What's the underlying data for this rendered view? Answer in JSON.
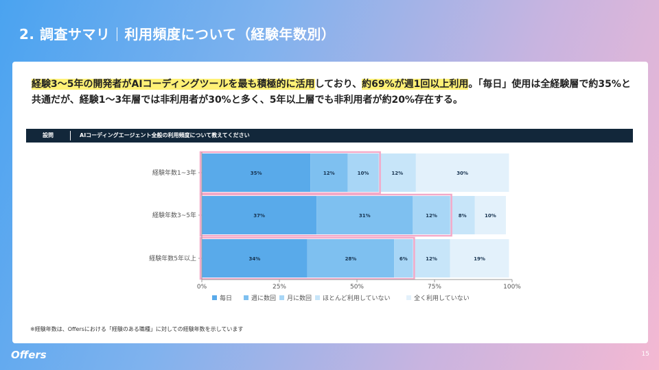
{
  "slide": {
    "title_main": "2. 調査サマリ",
    "title_sub": "利用頻度について（経験年数別）",
    "page_number": "15",
    "logo": "Offers"
  },
  "summary": {
    "part1_hl": "経験3〜5年の開発者がAIコーディングツールを最も積極的に活用",
    "part2": "しており、",
    "part3_hl": "約69%が週1回以上利用",
    "part4": "。「毎日」使用は全経験層で約35%と共通だが、経験1〜3年層では非利用者が30%と多く、5年以上層でも非利用者が約20%存在する。"
  },
  "question": {
    "label": "設問",
    "text": "AIコーディングエージェント全般の利用頻度について教えてください"
  },
  "footnote": "※経験年数は、Offersにおける「経験のある職種」に対しての経験年数を示しています",
  "chart_data": {
    "type": "bar",
    "orientation": "horizontal",
    "stacked": true,
    "unit": "%",
    "categories": [
      "経験年数1~3年",
      "経験年数3~5年",
      "経験年数5年以上"
    ],
    "series": [
      {
        "name": "毎日",
        "values": [
          35,
          37,
          34
        ],
        "color": "#59aaea",
        "label_color": "#16324f"
      },
      {
        "name": "週に数回",
        "values": [
          12,
          31,
          28
        ],
        "color": "#7ec0f0",
        "label_color": "#16324f"
      },
      {
        "name": "月に数回",
        "values": [
          10,
          12,
          6
        ],
        "color": "#a8d6f6",
        "label_color": "#16324f"
      },
      {
        "name": "ほとんど利用していない",
        "values": [
          12,
          8,
          12
        ],
        "color": "#c7e5f9",
        "label_color": "#16324f"
      },
      {
        "name": "全く利用していない",
        "values": [
          30,
          10,
          19
        ],
        "color": "#e3f1fb",
        "label_color": "#16324f"
      }
    ],
    "highlight_totals": [
      57,
      80,
      68
    ],
    "highlight_color": "#f3a9c8",
    "xlim": [
      0,
      100
    ],
    "xticks": [
      "0%",
      "25%",
      "50%",
      "75%",
      "100%"
    ],
    "xtick_values": [
      0,
      25,
      50,
      75,
      100
    ],
    "legend_position": "bottom",
    "grid": false
  }
}
